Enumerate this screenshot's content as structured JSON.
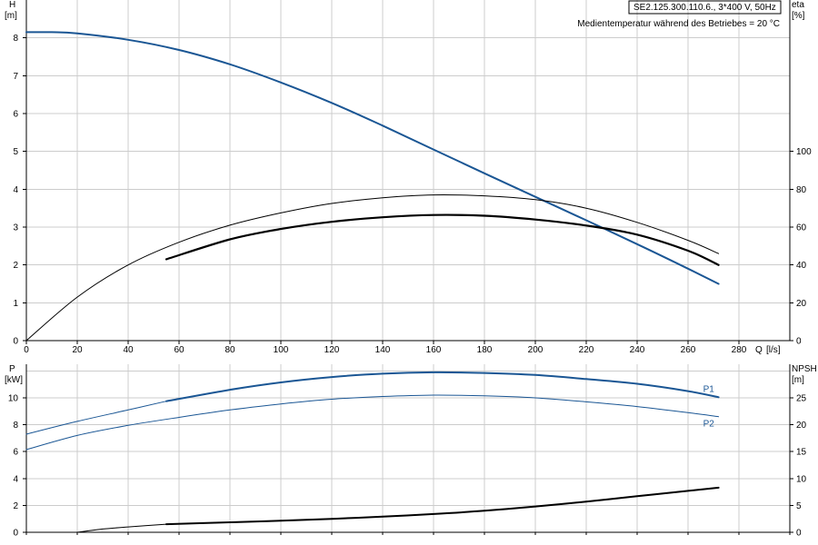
{
  "chart_data": [
    {
      "type": "line",
      "panel": "head-efficiency",
      "model_label": "SE2.125.300.110.6., 3*400 V, 50Hz",
      "medium_label": "Medientemperatur während des Betriebes = 20 °C",
      "ylabel_left": "H",
      "ylabel_left_unit": "[m]",
      "ylabel_right": "eta",
      "ylabel_right_unit": "[%]",
      "xlabel": "Q",
      "xlabel_unit": "[l/s]",
      "xlim": [
        0,
        300
      ],
      "ylim": [
        0,
        9
      ],
      "ylim_right": [
        0,
        180
      ],
      "xticks": [
        0,
        20,
        40,
        60,
        80,
        100,
        120,
        140,
        160,
        180,
        200,
        220,
        240,
        260,
        280
      ],
      "yticks": [
        0,
        1,
        2,
        3,
        4,
        5,
        6,
        7,
        8
      ],
      "yticks_right": [
        0,
        20,
        40,
        60,
        80,
        100
      ],
      "grid": true,
      "colors": {
        "head": "#1a5694",
        "efficiency": "#000000"
      },
      "series": [
        {
          "axis": "left",
          "color": "head",
          "width": 2,
          "x": [
            0,
            10,
            20,
            40,
            60,
            80,
            100,
            120,
            140,
            160,
            180,
            200,
            220,
            240,
            260,
            272
          ],
          "y": [
            8.15,
            8.15,
            8.12,
            7.95,
            7.68,
            7.3,
            6.82,
            6.28,
            5.68,
            5.05,
            4.42,
            3.8,
            3.18,
            2.55,
            1.9,
            1.5
          ]
        },
        {
          "axis": "right",
          "color": "efficiency",
          "width": 1,
          "x": [
            0,
            20,
            40,
            60,
            80,
            100,
            120,
            140,
            160,
            180,
            200,
            220,
            240,
            260,
            272
          ],
          "y": [
            0,
            23,
            40,
            52,
            61,
            67.5,
            72.5,
            75.5,
            77,
            76.5,
            74.5,
            70,
            62.5,
            53,
            46
          ]
        },
        {
          "axis": "right",
          "color": "efficiency",
          "width": 2.2,
          "x": [
            55,
            80,
            100,
            120,
            140,
            160,
            180,
            200,
            220,
            240,
            260,
            272
          ],
          "y": [
            43,
            53.5,
            59,
            62.8,
            65.2,
            66.4,
            66,
            64,
            60.8,
            56,
            47.5,
            40
          ]
        }
      ]
    },
    {
      "type": "line",
      "panel": "power-npsh",
      "ylabel_left": "P",
      "ylabel_left_unit": "[kW]",
      "ylabel_right": "NPSH",
      "ylabel_right_unit": "[m]",
      "xlim": [
        0,
        300
      ],
      "ylim": [
        0,
        12.5
      ],
      "ylim_right": [
        0,
        31.25
      ],
      "yticks": [
        0,
        2,
        4,
        6,
        8,
        10
      ],
      "yticks_right": [
        0,
        5,
        10,
        15,
        20,
        25
      ],
      "grid": true,
      "colors": {
        "power": "#1a5694",
        "npsh": "#000000"
      },
      "series": [
        {
          "name": "P1",
          "axis": "left",
          "color": "power",
          "width": 1,
          "x": [
            0,
            20,
            40,
            55
          ],
          "y": [
            7.3,
            8.25,
            9.1,
            9.75
          ]
        },
        {
          "name": "P1",
          "axis": "left",
          "color": "power",
          "width": 2,
          "label": true,
          "x": [
            55,
            80,
            100,
            120,
            140,
            160,
            180,
            200,
            220,
            240,
            260,
            272
          ],
          "y": [
            9.75,
            10.6,
            11.15,
            11.55,
            11.8,
            11.9,
            11.85,
            11.7,
            11.4,
            11.05,
            10.5,
            10.05
          ]
        },
        {
          "name": "P2",
          "axis": "left",
          "color": "power",
          "width": 1,
          "label": true,
          "x": [
            0,
            20,
            40,
            60,
            80,
            100,
            120,
            140,
            160,
            180,
            200,
            220,
            240,
            260,
            272
          ],
          "y": [
            6.15,
            7.2,
            7.95,
            8.55,
            9.1,
            9.55,
            9.9,
            10.1,
            10.2,
            10.15,
            10.0,
            9.7,
            9.35,
            8.9,
            8.6
          ]
        },
        {
          "axis": "right",
          "color": "npsh",
          "width": 1,
          "x": [
            20,
            30,
            40,
            55
          ],
          "y": [
            0,
            0.6,
            1.0,
            1.5
          ]
        },
        {
          "axis": "right",
          "color": "npsh",
          "width": 2,
          "x": [
            55,
            80,
            100,
            120,
            140,
            160,
            180,
            200,
            220,
            240,
            260,
            272
          ],
          "y": [
            1.5,
            1.85,
            2.15,
            2.5,
            2.9,
            3.4,
            4.0,
            4.8,
            5.7,
            6.7,
            7.7,
            8.3
          ]
        }
      ]
    }
  ]
}
